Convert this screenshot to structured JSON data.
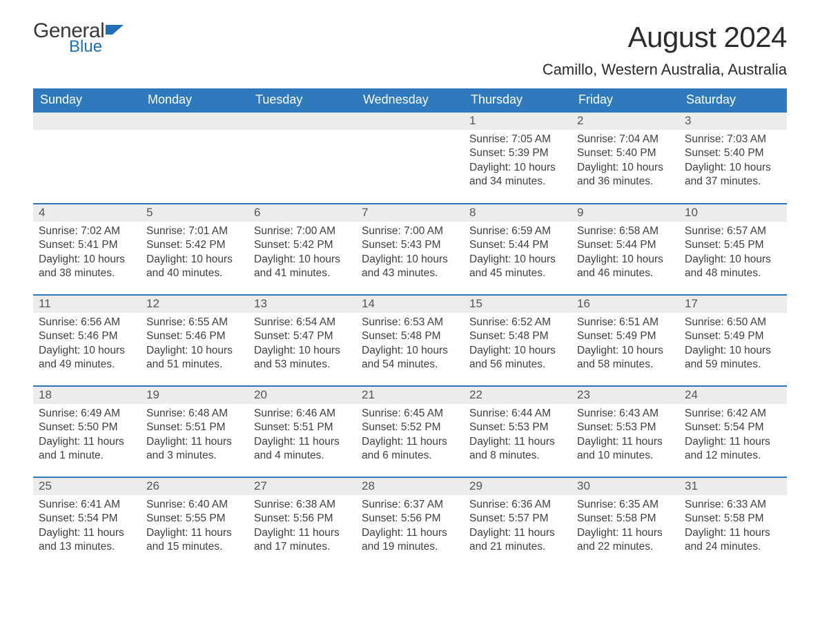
{
  "logo": {
    "text1": "General",
    "text2": "Blue",
    "accent_color": "#1f6fb2",
    "text_color": "#3a3a3a"
  },
  "title": "August 2024",
  "location": "Camillo, Western Australia, Australia",
  "colors": {
    "header_bg": "#2f79bd",
    "header_text": "#ffffff",
    "daynum_bg": "#ececec",
    "body_text": "#404040",
    "page_bg": "#ffffff",
    "row_divider": "#2f79bd"
  },
  "weekdays": [
    "Sunday",
    "Monday",
    "Tuesday",
    "Wednesday",
    "Thursday",
    "Friday",
    "Saturday"
  ],
  "weeks": [
    [
      {
        "empty": true
      },
      {
        "empty": true
      },
      {
        "empty": true
      },
      {
        "empty": true
      },
      {
        "day": "1",
        "sunrise": "Sunrise: 7:05 AM",
        "sunset": "Sunset: 5:39 PM",
        "daylight": "Daylight: 10 hours and 34 minutes."
      },
      {
        "day": "2",
        "sunrise": "Sunrise: 7:04 AM",
        "sunset": "Sunset: 5:40 PM",
        "daylight": "Daylight: 10 hours and 36 minutes."
      },
      {
        "day": "3",
        "sunrise": "Sunrise: 7:03 AM",
        "sunset": "Sunset: 5:40 PM",
        "daylight": "Daylight: 10 hours and 37 minutes."
      }
    ],
    [
      {
        "day": "4",
        "sunrise": "Sunrise: 7:02 AM",
        "sunset": "Sunset: 5:41 PM",
        "daylight": "Daylight: 10 hours and 38 minutes."
      },
      {
        "day": "5",
        "sunrise": "Sunrise: 7:01 AM",
        "sunset": "Sunset: 5:42 PM",
        "daylight": "Daylight: 10 hours and 40 minutes."
      },
      {
        "day": "6",
        "sunrise": "Sunrise: 7:00 AM",
        "sunset": "Sunset: 5:42 PM",
        "daylight": "Daylight: 10 hours and 41 minutes."
      },
      {
        "day": "7",
        "sunrise": "Sunrise: 7:00 AM",
        "sunset": "Sunset: 5:43 PM",
        "daylight": "Daylight: 10 hours and 43 minutes."
      },
      {
        "day": "8",
        "sunrise": "Sunrise: 6:59 AM",
        "sunset": "Sunset: 5:44 PM",
        "daylight": "Daylight: 10 hours and 45 minutes."
      },
      {
        "day": "9",
        "sunrise": "Sunrise: 6:58 AM",
        "sunset": "Sunset: 5:44 PM",
        "daylight": "Daylight: 10 hours and 46 minutes."
      },
      {
        "day": "10",
        "sunrise": "Sunrise: 6:57 AM",
        "sunset": "Sunset: 5:45 PM",
        "daylight": "Daylight: 10 hours and 48 minutes."
      }
    ],
    [
      {
        "day": "11",
        "sunrise": "Sunrise: 6:56 AM",
        "sunset": "Sunset: 5:46 PM",
        "daylight": "Daylight: 10 hours and 49 minutes."
      },
      {
        "day": "12",
        "sunrise": "Sunrise: 6:55 AM",
        "sunset": "Sunset: 5:46 PM",
        "daylight": "Daylight: 10 hours and 51 minutes."
      },
      {
        "day": "13",
        "sunrise": "Sunrise: 6:54 AM",
        "sunset": "Sunset: 5:47 PM",
        "daylight": "Daylight: 10 hours and 53 minutes."
      },
      {
        "day": "14",
        "sunrise": "Sunrise: 6:53 AM",
        "sunset": "Sunset: 5:48 PM",
        "daylight": "Daylight: 10 hours and 54 minutes."
      },
      {
        "day": "15",
        "sunrise": "Sunrise: 6:52 AM",
        "sunset": "Sunset: 5:48 PM",
        "daylight": "Daylight: 10 hours and 56 minutes."
      },
      {
        "day": "16",
        "sunrise": "Sunrise: 6:51 AM",
        "sunset": "Sunset: 5:49 PM",
        "daylight": "Daylight: 10 hours and 58 minutes."
      },
      {
        "day": "17",
        "sunrise": "Sunrise: 6:50 AM",
        "sunset": "Sunset: 5:49 PM",
        "daylight": "Daylight: 10 hours and 59 minutes."
      }
    ],
    [
      {
        "day": "18",
        "sunrise": "Sunrise: 6:49 AM",
        "sunset": "Sunset: 5:50 PM",
        "daylight": "Daylight: 11 hours and 1 minute."
      },
      {
        "day": "19",
        "sunrise": "Sunrise: 6:48 AM",
        "sunset": "Sunset: 5:51 PM",
        "daylight": "Daylight: 11 hours and 3 minutes."
      },
      {
        "day": "20",
        "sunrise": "Sunrise: 6:46 AM",
        "sunset": "Sunset: 5:51 PM",
        "daylight": "Daylight: 11 hours and 4 minutes."
      },
      {
        "day": "21",
        "sunrise": "Sunrise: 6:45 AM",
        "sunset": "Sunset: 5:52 PM",
        "daylight": "Daylight: 11 hours and 6 minutes."
      },
      {
        "day": "22",
        "sunrise": "Sunrise: 6:44 AM",
        "sunset": "Sunset: 5:53 PM",
        "daylight": "Daylight: 11 hours and 8 minutes."
      },
      {
        "day": "23",
        "sunrise": "Sunrise: 6:43 AM",
        "sunset": "Sunset: 5:53 PM",
        "daylight": "Daylight: 11 hours and 10 minutes."
      },
      {
        "day": "24",
        "sunrise": "Sunrise: 6:42 AM",
        "sunset": "Sunset: 5:54 PM",
        "daylight": "Daylight: 11 hours and 12 minutes."
      }
    ],
    [
      {
        "day": "25",
        "sunrise": "Sunrise: 6:41 AM",
        "sunset": "Sunset: 5:54 PM",
        "daylight": "Daylight: 11 hours and 13 minutes."
      },
      {
        "day": "26",
        "sunrise": "Sunrise: 6:40 AM",
        "sunset": "Sunset: 5:55 PM",
        "daylight": "Daylight: 11 hours and 15 minutes."
      },
      {
        "day": "27",
        "sunrise": "Sunrise: 6:38 AM",
        "sunset": "Sunset: 5:56 PM",
        "daylight": "Daylight: 11 hours and 17 minutes."
      },
      {
        "day": "28",
        "sunrise": "Sunrise: 6:37 AM",
        "sunset": "Sunset: 5:56 PM",
        "daylight": "Daylight: 11 hours and 19 minutes."
      },
      {
        "day": "29",
        "sunrise": "Sunrise: 6:36 AM",
        "sunset": "Sunset: 5:57 PM",
        "daylight": "Daylight: 11 hours and 21 minutes."
      },
      {
        "day": "30",
        "sunrise": "Sunrise: 6:35 AM",
        "sunset": "Sunset: 5:58 PM",
        "daylight": "Daylight: 11 hours and 22 minutes."
      },
      {
        "day": "31",
        "sunrise": "Sunrise: 6:33 AM",
        "sunset": "Sunset: 5:58 PM",
        "daylight": "Daylight: 11 hours and 24 minutes."
      }
    ]
  ]
}
